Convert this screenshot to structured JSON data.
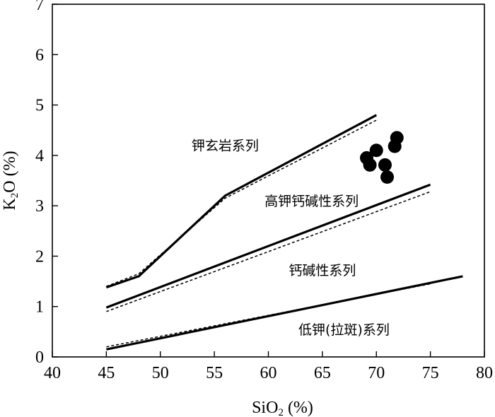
{
  "chart_data": {
    "type": "line",
    "xlabel": {
      "base": "SiO",
      "sub": "2",
      "unit": " (%)"
    },
    "ylabel": {
      "base": "K",
      "sub": "2",
      "unit": "O (%)"
    },
    "xlim": [
      40,
      80
    ],
    "ylim": [
      0,
      7
    ],
    "x_ticks": [
      40,
      45,
      50,
      55,
      60,
      65,
      70,
      75,
      80
    ],
    "y_ticks": [
      0,
      1,
      2,
      3,
      4,
      5,
      6,
      7
    ],
    "grid": false,
    "boundaries": [
      {
        "style": "solid",
        "points": [
          [
            45,
            1.38
          ],
          [
            48,
            1.6
          ],
          [
            56,
            3.2
          ],
          [
            70,
            4.8
          ]
        ]
      },
      {
        "style": "dashed",
        "points": [
          [
            45,
            1.4
          ],
          [
            48,
            1.65
          ],
          [
            56,
            3.15
          ],
          [
            70,
            4.7
          ]
        ]
      },
      {
        "style": "solid",
        "points": [
          [
            45,
            0.98
          ],
          [
            75,
            3.42
          ]
        ]
      },
      {
        "style": "dashed",
        "points": [
          [
            45,
            0.9
          ],
          [
            75,
            3.28
          ]
        ]
      },
      {
        "style": "solid",
        "points": [
          [
            45,
            0.15
          ],
          [
            78,
            1.6
          ]
        ]
      },
      {
        "style": "dashed",
        "points": [
          [
            45,
            0.2
          ],
          [
            75,
            1.45
          ]
        ]
      }
    ],
    "field_labels": [
      {
        "text": "钾玄岩系列",
        "x": 56,
        "y": 4.1
      },
      {
        "text": "高钾钙碱性系列",
        "x": 64,
        "y": 3.0
      },
      {
        "text": "钙碱性系列",
        "x": 65,
        "y": 1.63
      },
      {
        "text": "低钾(拉斑)系列",
        "x": 67,
        "y": 0.45
      }
    ],
    "samples": [
      {
        "x": 69.1,
        "y": 3.95
      },
      {
        "x": 69.4,
        "y": 3.81
      },
      {
        "x": 70.0,
        "y": 4.1
      },
      {
        "x": 70.8,
        "y": 3.81
      },
      {
        "x": 71.0,
        "y": 3.57
      },
      {
        "x": 71.7,
        "y": 4.18
      },
      {
        "x": 71.9,
        "y": 4.35
      }
    ]
  }
}
